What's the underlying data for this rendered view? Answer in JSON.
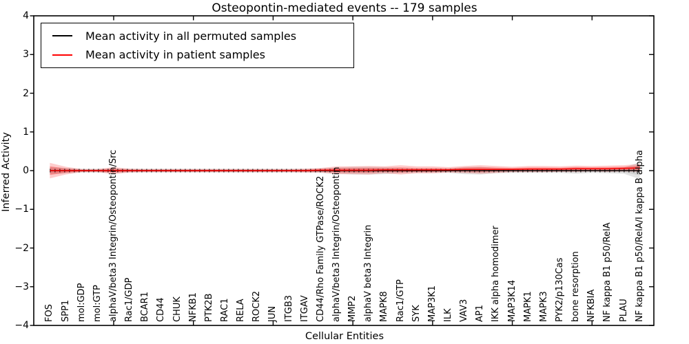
{
  "title": "Osteopontin-mediated events -- 179 samples",
  "legend": {
    "items": [
      {
        "label": "Mean activity in all permuted samples",
        "color": "#000000"
      },
      {
        "label": "Mean activity in patient samples",
        "color": "#ff0000"
      }
    ]
  },
  "chart_data": {
    "type": "line",
    "title": "Osteopontin-mediated events -- 179 samples",
    "xlabel": "Cellular Entities",
    "ylabel": "Inferred Activity",
    "ylim": [
      -4,
      4
    ],
    "ytick_labels": [
      "4",
      "3",
      "2",
      "1",
      "0",
      "−1",
      "−2",
      "−3",
      "−4"
    ],
    "grid": false,
    "legend_position": "upper left",
    "x_major_tick_indices": [
      4,
      9,
      14,
      19,
      24,
      29,
      34
    ],
    "categories": [
      "FOS",
      "SPP1",
      "mol:GDP",
      "mol:GTP",
      "alphaV/beta3 Integrin/Osteopontin/Src",
      "Rac1/GDP",
      "BCAR1",
      "CD44",
      "CHUK",
      "NFKB1",
      "PTK2B",
      "RAC1",
      "RELA",
      "ROCK2",
      "JUN",
      "ITGB3",
      "ITGAV",
      "CD44/Rho Family GTPase/ROCK2",
      "alphaV/beta3 Integrin/Osteopontin",
      "MMP2",
      "alphaV beta3 Integrin",
      "MAPK8",
      "Rac1/GTP",
      "SYK",
      "MAP3K1",
      "ILK",
      "VAV3",
      "AP1",
      "IKK alpha homodimer",
      "MAP3K14",
      "MAPK1",
      "MAPK3",
      "PYK2/p130Cas",
      "bone resorption",
      "NFKBIA",
      "NF kappa B1 p50/RelA",
      "PLAU",
      "NF kappa B1 p50/RelA/I kappa B alpha"
    ],
    "series": [
      {
        "name": "Mean activity in all permuted samples",
        "color": "#000000",
        "band_color": "#8c8c8c",
        "values": [
          0,
          0,
          0,
          0,
          0,
          0,
          0,
          0,
          0,
          0,
          0,
          0,
          0,
          0,
          0,
          0,
          0,
          0,
          0,
          0,
          0,
          0,
          0,
          0,
          0,
          0,
          0,
          0,
          0,
          0,
          0,
          0,
          0,
          0,
          0,
          0,
          0,
          0
        ],
        "band": [
          0.1,
          0.07,
          0.05,
          0.05,
          0.06,
          0.05,
          0.05,
          0.05,
          0.05,
          0.05,
          0.05,
          0.05,
          0.05,
          0.05,
          0.05,
          0.05,
          0.05,
          0.06,
          0.08,
          0.1,
          0.1,
          0.09,
          0.07,
          0.06,
          0.06,
          0.06,
          0.09,
          0.1,
          0.07,
          0.06,
          0.06,
          0.06,
          0.06,
          0.08,
          0.06,
          0.07,
          0.08,
          0.22
        ]
      },
      {
        "name": "Mean activity in patient samples",
        "color": "#ff0000",
        "band_color": "#ff0000",
        "values": [
          0,
          0,
          0,
          0,
          0,
          0,
          0,
          0,
          0,
          0,
          0,
          0,
          0,
          0,
          0,
          0,
          0,
          0.01,
          0.01,
          0.01,
          0.01,
          0.02,
          0.02,
          0.02,
          0.02,
          0.02,
          0.03,
          0.03,
          0.03,
          0.03,
          0.04,
          0.04,
          0.04,
          0.05,
          0.05,
          0.05,
          0.06,
          0.07
        ],
        "band": [
          0.2,
          0.1,
          0.04,
          0.04,
          0.09,
          0.05,
          0.04,
          0.04,
          0.04,
          0.04,
          0.04,
          0.04,
          0.04,
          0.04,
          0.04,
          0.04,
          0.05,
          0.06,
          0.1,
          0.1,
          0.11,
          0.09,
          0.12,
          0.09,
          0.09,
          0.07,
          0.09,
          0.11,
          0.09,
          0.07,
          0.08,
          0.08,
          0.07,
          0.08,
          0.07,
          0.08,
          0.08,
          0.1
        ]
      }
    ]
  }
}
